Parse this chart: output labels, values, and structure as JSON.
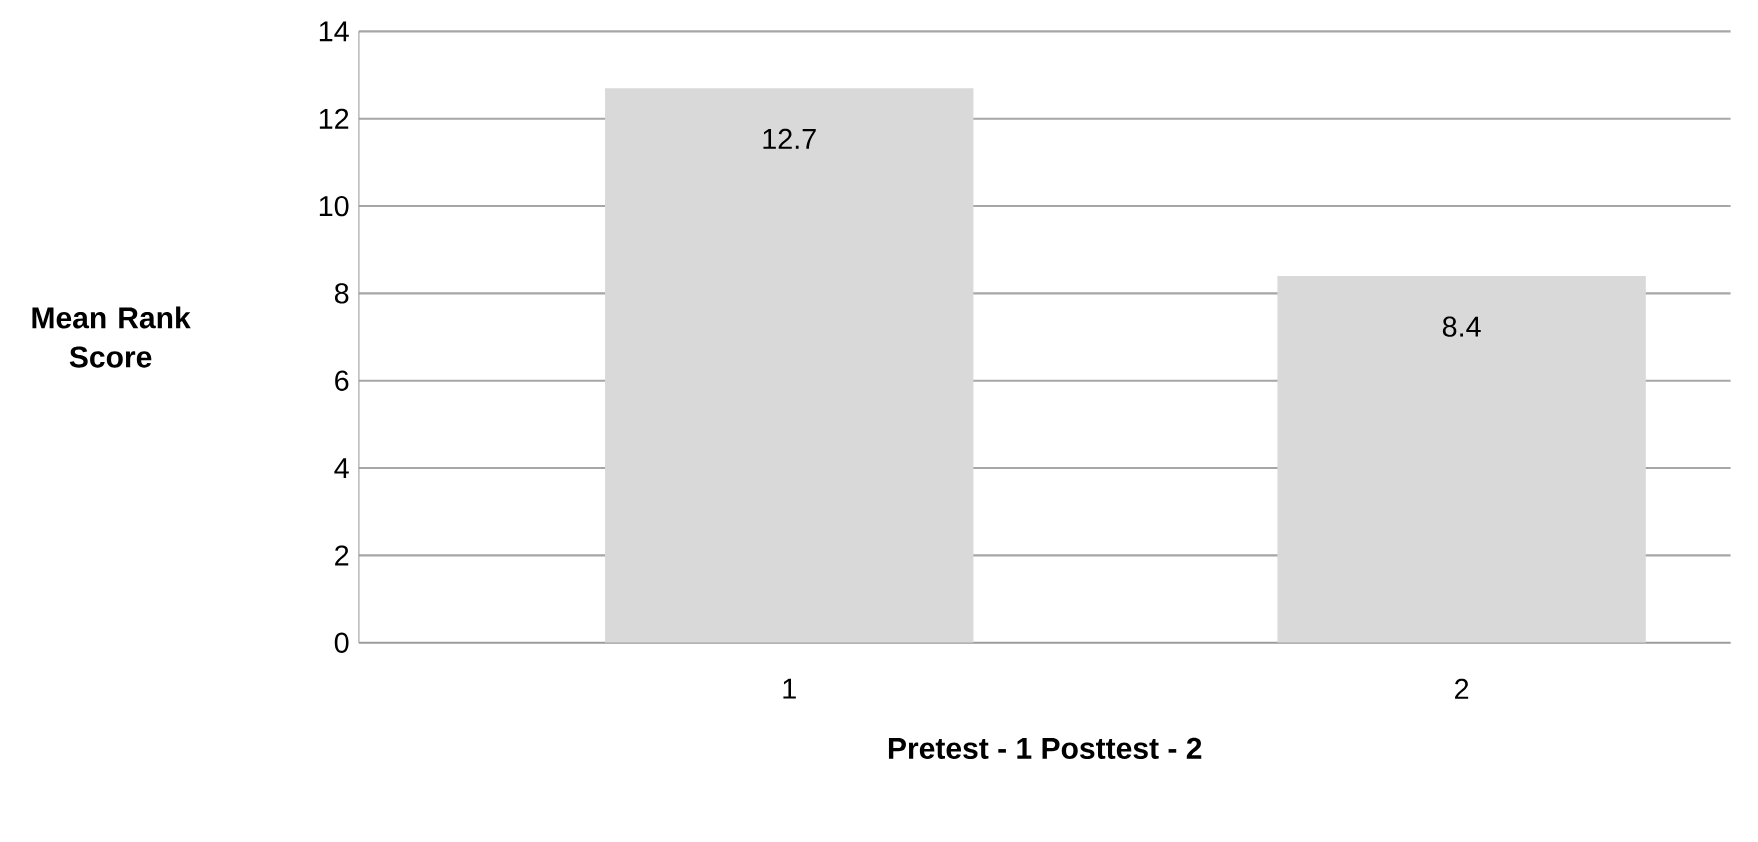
{
  "chart_data": {
    "type": "bar",
    "xlabel": "Pretest - 1  Posttest - 2",
    "ylabel": "Mean Rank Score",
    "categories": [
      "1",
      "2"
    ],
    "values": [
      12.7,
      8.4
    ],
    "color": "#d9d9d9",
    "ylim": [
      0,
      14
    ],
    "yticks": [
      0,
      2,
      4,
      6,
      8,
      10,
      12,
      14
    ],
    "grid": "y",
    "data_labels": true
  }
}
